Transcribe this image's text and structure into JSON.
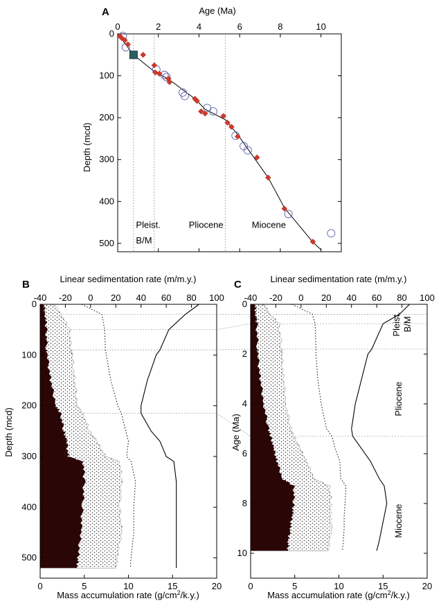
{
  "chart_data": [
    {
      "panel": "A",
      "type": "scatter",
      "xlabel": "Age (Ma)",
      "ylabel": "Depth (mcd)",
      "xlim": [
        0,
        11
      ],
      "ylim": [
        0,
        520
      ],
      "y_inverted": true,
      "x_ticks": [
        0,
        2,
        4,
        6,
        8,
        10
      ],
      "y_ticks": [
        0,
        100,
        200,
        300,
        400,
        500
      ],
      "epoch_boundaries_age": [
        0.78,
        1.8,
        5.3
      ],
      "epoch_labels": [
        {
          "text": "Pleist.",
          "age": 0.9,
          "depth": 455
        },
        {
          "text": "B/M",
          "age": 0.9,
          "depth": 492
        },
        {
          "text": "Pliocene",
          "age": 3.5,
          "depth": 455
        },
        {
          "text": "Miocene",
          "age": 6.6,
          "depth": 455
        }
      ],
      "series": [
        {
          "marker": "diamond-red",
          "points": [
            [
              0.1,
              5
            ],
            [
              0.2,
              10
            ],
            [
              0.35,
              15
            ],
            [
              0.5,
              25
            ],
            [
              1.25,
              50
            ],
            [
              1.8,
              75
            ],
            [
              1.85,
              92
            ],
            [
              2.05,
              95
            ],
            [
              2.5,
              107
            ],
            [
              2.55,
              115
            ],
            [
              3.8,
              155
            ],
            [
              3.9,
              160
            ],
            [
              4.1,
              185
            ],
            [
              4.3,
              190
            ],
            [
              5.2,
              196
            ],
            [
              5.4,
              212
            ],
            [
              5.6,
              222
            ],
            [
              5.9,
              245
            ],
            [
              6.85,
              295
            ],
            [
              7.4,
              343
            ],
            [
              8.2,
              417
            ],
            [
              9.6,
              496
            ]
          ]
        },
        {
          "marker": "circle-open-blue",
          "points": [
            [
              0.25,
              5
            ],
            [
              0.4,
              32
            ],
            [
              1.9,
              85
            ],
            [
              2.3,
              98
            ],
            [
              2.4,
              103
            ],
            [
              3.2,
              140
            ],
            [
              3.3,
              148
            ],
            [
              4.4,
              177
            ],
            [
              4.7,
              185
            ],
            [
              5.8,
              243
            ],
            [
              6.2,
              268
            ],
            [
              6.4,
              278
            ],
            [
              8.4,
              430
            ],
            [
              10.5,
              476
            ]
          ]
        },
        {
          "marker": "square-teal",
          "points": [
            [
              0.78,
              50
            ]
          ]
        }
      ],
      "age_model_line": [
        [
          0,
          0
        ],
        [
          0.78,
          50
        ],
        [
          1.8,
          90
        ],
        [
          2.5,
          108
        ],
        [
          3.8,
          155
        ],
        [
          4.3,
          180
        ],
        [
          5.3,
          205
        ],
        [
          5.9,
          240
        ],
        [
          7.4,
          343
        ],
        [
          8.2,
          415
        ],
        [
          9.6,
          497
        ],
        [
          10.0,
          515
        ]
      ]
    },
    {
      "panel": "B",
      "type": "area",
      "xlabel_top": "Linear sedimentation rate (m/m.y.)",
      "xlabel_bottom": "Mass accumulation rate (g/cm²/k.y.)",
      "ylabel": "Depth (mcd)",
      "top_xlim": [
        -40,
        100
      ],
      "top_ticks": [
        -40,
        -20,
        0,
        20,
        40,
        60,
        80,
        100
      ],
      "bottom_xlim": [
        0,
        20
      ],
      "bottom_ticks": [
        0,
        5,
        10,
        15,
        20
      ],
      "ylim": [
        0,
        540
      ],
      "y_inverted": true,
      "y_ticks": [
        0,
        100,
        200,
        300,
        400,
        500
      ],
      "guide_depths": [
        20,
        50,
        90,
        215
      ],
      "depth": [
        0,
        20,
        50,
        90,
        100,
        150,
        200,
        215,
        250,
        270,
        300,
        310,
        350,
        400,
        450,
        500,
        520
      ],
      "mar_dark": [
        0.4,
        0.6,
        0.7,
        0.75,
        0.8,
        1.2,
        1.8,
        2.3,
        2.7,
        3.0,
        3.2,
        4.9,
        5.0,
        4.8,
        4.6,
        4.3,
        4.2
      ],
      "mar_total": [
        1.5,
        2.4,
        3.3,
        3.5,
        3.6,
        3.9,
        4.2,
        4.8,
        5.6,
        6.4,
        7.4,
        9.0,
        9.2,
        9.0,
        9.2,
        8.7,
        8.6
      ],
      "mar_dotted": [
        4.7,
        7.0,
        7.3,
        7.4,
        7.5,
        8.0,
        8.8,
        9.2,
        9.7,
        10.0,
        9.8,
        10.3,
        10.8,
        10.6,
        10.6,
        10.3,
        10.2
      ],
      "lsr_line": [
        86,
        75,
        62,
        55,
        52,
        45,
        40,
        40,
        48,
        55,
        60,
        66,
        68,
        68,
        68,
        68,
        68
      ]
    },
    {
      "panel": "C",
      "type": "area",
      "xlabel_top": "Linear sedimentation rate (m/m.y.)",
      "xlabel_bottom": "Mass accumulation rate (g/cm²/k.y.)",
      "ylabel": "Age (Ma)",
      "top_xlim": [
        -40,
        100
      ],
      "top_ticks": [
        -40,
        -20,
        0,
        20,
        40,
        60,
        80,
        100
      ],
      "bottom_xlim": [
        0,
        20
      ],
      "bottom_ticks": [
        0,
        5,
        10,
        15,
        20
      ],
      "ylim": [
        0,
        11
      ],
      "y_inverted": true,
      "y_ticks": [
        0,
        2,
        4,
        6,
        8,
        10
      ],
      "guide_ages": [
        0.4,
        0.78,
        1.8,
        5.3
      ],
      "age": [
        0,
        0.4,
        0.78,
        1.8,
        2,
        3,
        4,
        5,
        5.3,
        5.8,
        6.3,
        7,
        7.3,
        8,
        8.5,
        9,
        9.5,
        9.9
      ],
      "mar_dark": [
        0.5,
        0.6,
        0.7,
        0.8,
        0.8,
        1.1,
        1.5,
        2.0,
        2.3,
        2.6,
        3.0,
        3.6,
        4.9,
        4.9,
        4.7,
        4.5,
        4.3,
        4.2
      ],
      "mar_total": [
        1.5,
        2.2,
        3.2,
        3.5,
        3.5,
        3.7,
        4.0,
        4.5,
        4.9,
        5.6,
        6.3,
        7.2,
        8.9,
        9.1,
        9.0,
        9.2,
        8.9,
        8.8
      ],
      "mar_dotted": [
        4.7,
        7.0,
        7.3,
        7.4,
        7.4,
        7.6,
        8.0,
        8.6,
        9.2,
        9.6,
        10.1,
        10.2,
        10.8,
        10.7,
        10.6,
        10.6,
        10.5,
        10.4
      ],
      "lsr_line": [
        86,
        78,
        65,
        56,
        53,
        48,
        43,
        40,
        41,
        48,
        55,
        62,
        66,
        68,
        66,
        64,
        62,
        60
      ],
      "epoch_labels": [
        {
          "text": "Pleist.",
          "age": 0.8
        },
        {
          "text": "B/M",
          "age": 0.8
        },
        {
          "text": "Pliocene",
          "age": 3.8
        },
        {
          "text": "Miocene",
          "age": 8.7
        }
      ]
    }
  ]
}
